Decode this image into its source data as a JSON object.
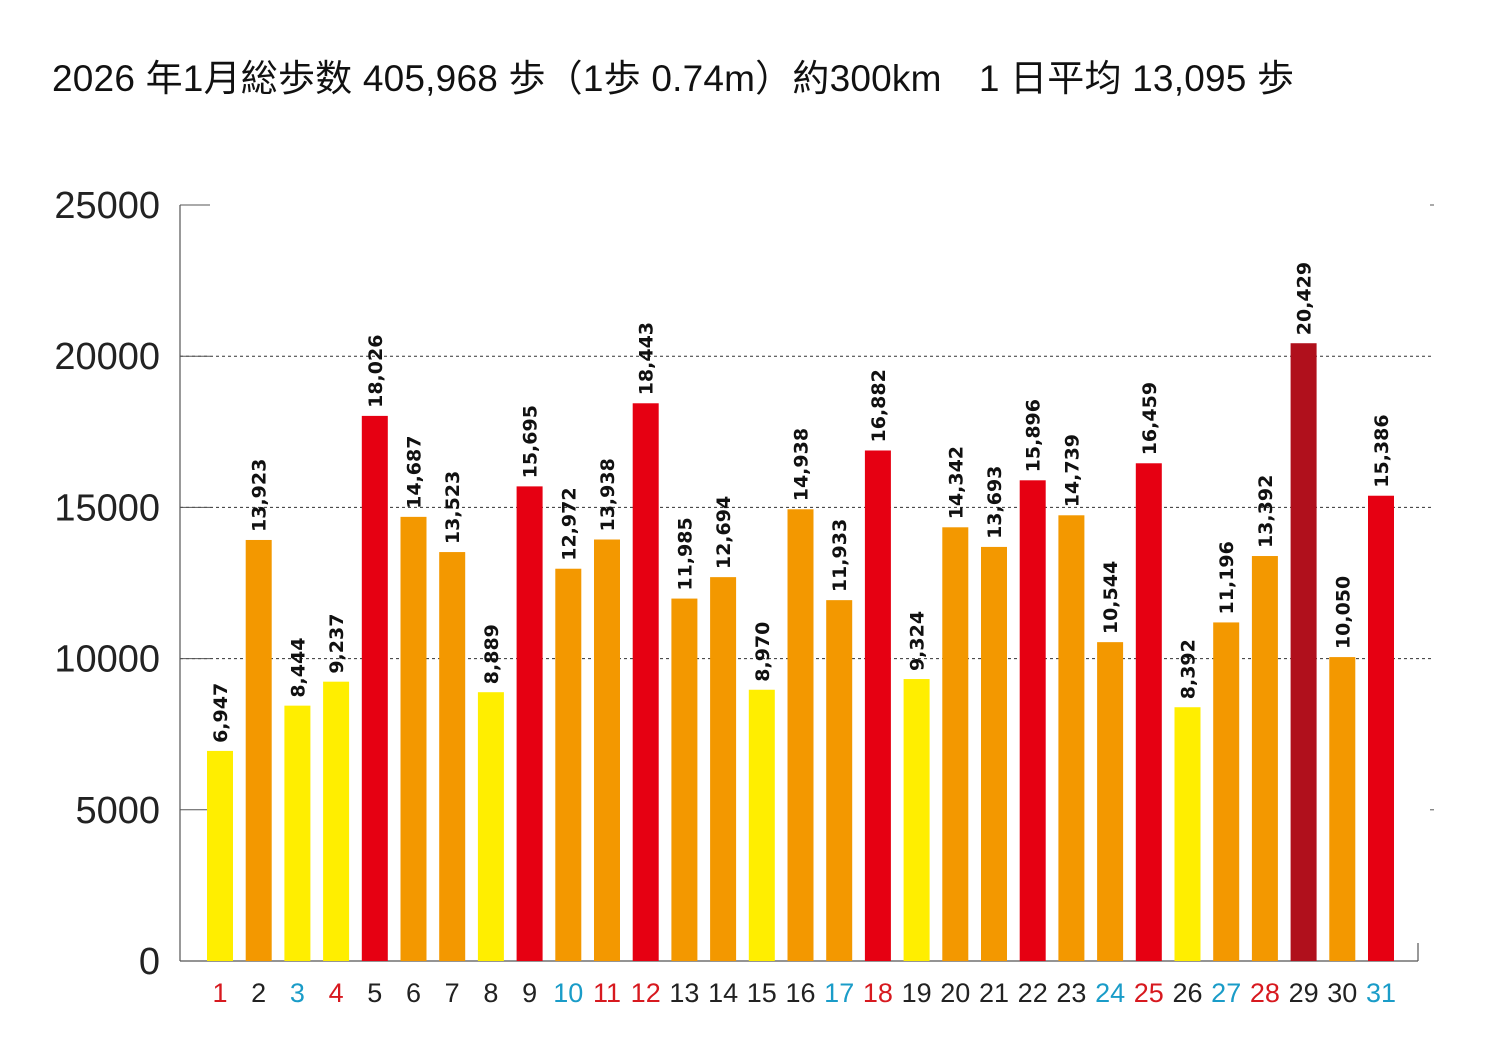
{
  "title": "2026 年1月総歩数 405,968 歩（1歩 0.74m）約300km　1 日平均 13,095 歩",
  "colors": {
    "low": "#FFEE00",
    "mid": "#F39800",
    "high": "#E60012",
    "max": "#B0101C",
    "day_normal": "#222222",
    "day_red": "#D7191F",
    "day_blue": "#1A9CC8"
  },
  "chart_data": {
    "type": "bar",
    "title": "2026 年1月総歩数 405,968 歩（1歩 0.74m）約300km　1 日平均 13,095 歩",
    "xlabel": "",
    "ylabel": "",
    "ylim": [
      0,
      25000
    ],
    "yticks": [
      0,
      5000,
      10000,
      15000,
      20000,
      25000
    ],
    "ytick_labels": [
      "0",
      "5000",
      "10000",
      "15000",
      "20000",
      "25000"
    ],
    "gridlines": [
      10000,
      15000,
      20000
    ],
    "categories": [
      "1",
      "2",
      "3",
      "4",
      "5",
      "6",
      "7",
      "8",
      "9",
      "10",
      "11",
      "12",
      "13",
      "14",
      "15",
      "16",
      "17",
      "18",
      "19",
      "20",
      "21",
      "22",
      "23",
      "24",
      "25",
      "26",
      "27",
      "28",
      "29",
      "30",
      "31"
    ],
    "values": [
      6947,
      13923,
      8444,
      9237,
      18026,
      14687,
      13523,
      8889,
      15695,
      12972,
      13938,
      18443,
      11985,
      12694,
      8970,
      14938,
      11933,
      16882,
      9324,
      14342,
      13693,
      15896,
      14739,
      10544,
      16459,
      8392,
      11196,
      13392,
      20429,
      10050,
      15386
    ],
    "value_labels": [
      "6,947",
      "13,923",
      "8,444",
      "9,237",
      "18,026",
      "14,687",
      "13,523",
      "8,889",
      "15,695",
      "12,972",
      "13,938",
      "18,443",
      "11,985",
      "12,694",
      "8,970",
      "14,938",
      "11,933",
      "16,882",
      "9,324",
      "14,342",
      "13,693",
      "15,896",
      "14,739",
      "10,544",
      "16,459",
      "8,392",
      "11,196",
      "13,392",
      "20,429",
      "10,050",
      "15,386"
    ],
    "bar_color_class": [
      "low",
      "mid",
      "low",
      "low",
      "high",
      "mid",
      "mid",
      "low",
      "high",
      "mid",
      "mid",
      "high",
      "mid",
      "mid",
      "low",
      "mid",
      "mid",
      "high",
      "low",
      "mid",
      "mid",
      "high",
      "mid",
      "mid",
      "high",
      "low",
      "mid",
      "mid",
      "max",
      "mid",
      "high"
    ],
    "day_label_color": [
      "red",
      "normal",
      "blue",
      "red",
      "normal",
      "normal",
      "normal",
      "normal",
      "normal",
      "blue",
      "red",
      "red",
      "normal",
      "normal",
      "normal",
      "normal",
      "blue",
      "red",
      "normal",
      "normal",
      "normal",
      "normal",
      "normal",
      "blue",
      "red",
      "normal",
      "blue",
      "red",
      "normal",
      "normal",
      "blue"
    ]
  }
}
